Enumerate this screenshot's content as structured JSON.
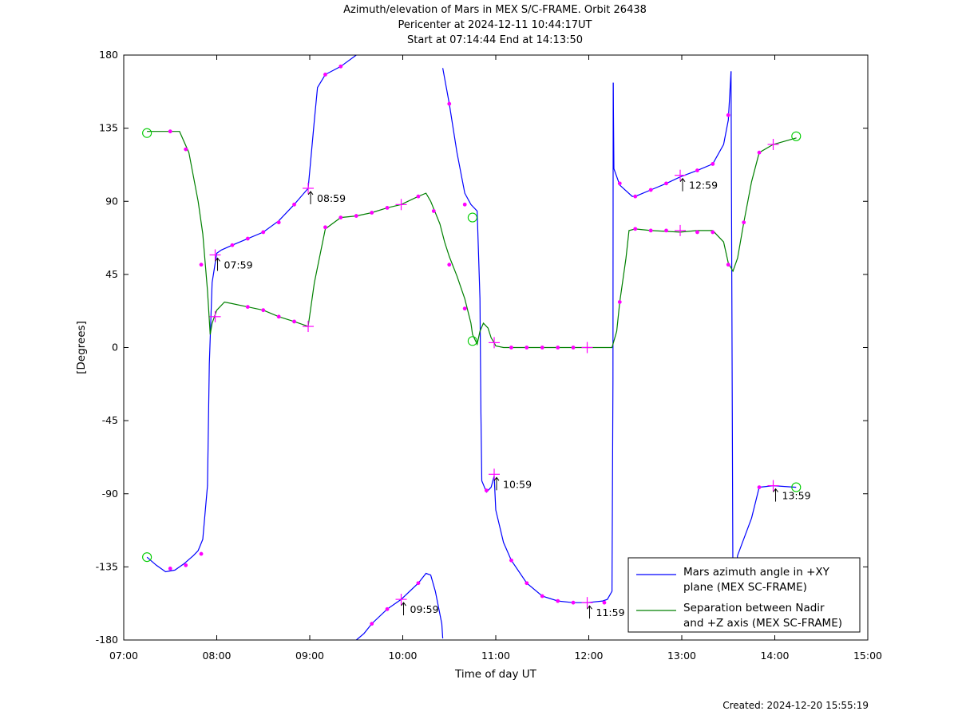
{
  "header": {
    "title": "Azimuth/elevation of Mars in MEX S/C-FRAME.  Orbit 26438",
    "pericenter": "Pericenter at 2024-12-11 10:44:17UT",
    "range": "Start at 07:14:44 End at 14:13:50"
  },
  "footer": {
    "created": "Created: 2024-12-20 15:55:19"
  },
  "chart_data": {
    "type": "line",
    "title": "Azimuth/elevation of Mars in MEX S/C-FRAME.  Orbit 26438",
    "xlabel": "Time of day UT",
    "ylabel": "[Degrees]",
    "xlim": [
      7.0,
      15.0
    ],
    "ylim": [
      -180,
      180
    ],
    "x_ticks": [
      "07:00",
      "08:00",
      "09:00",
      "10:00",
      "11:00",
      "12:00",
      "13:00",
      "14:00",
      "15:00"
    ],
    "y_ticks": [
      "180",
      "135",
      "90",
      "45",
      "0",
      "-45",
      "-90",
      "-135",
      "-180"
    ],
    "grid": false,
    "legend_position": "bottom-right",
    "series": [
      {
        "name": "Mars azimuth angle in +XY\nplane (MEX SC-FRAME)",
        "color": "#0000ff",
        "segments": [
          [
            [
              7.25,
              -129
            ],
            [
              7.35,
              -134
            ],
            [
              7.45,
              -138
            ],
            [
              7.55,
              -137
            ],
            [
              7.65,
              -133
            ],
            [
              7.75,
              -128
            ],
            [
              7.8,
              -125
            ],
            [
              7.85,
              -118
            ],
            [
              7.9,
              -85
            ],
            [
              7.92,
              -10
            ],
            [
              7.95,
              40
            ],
            [
              8.0,
              58
            ],
            [
              8.05,
              60
            ],
            [
              8.167,
              63
            ],
            [
              8.333,
              67
            ],
            [
              8.5,
              71
            ],
            [
              8.667,
              78
            ],
            [
              8.833,
              88
            ],
            [
              8.983,
              98
            ],
            [
              9.05,
              140
            ],
            [
              9.083,
              160
            ],
            [
              9.167,
              168
            ],
            [
              9.333,
              173
            ],
            [
              9.5,
              180
            ]
          ],
          [
            [
              9.5,
              -180
            ],
            [
              9.583,
              -176
            ],
            [
              9.667,
              -170
            ],
            [
              9.833,
              -161
            ],
            [
              9.983,
              -155
            ],
            [
              10.167,
              -145
            ],
            [
              10.25,
              -139
            ],
            [
              10.3,
              -140
            ],
            [
              10.35,
              -150
            ],
            [
              10.42,
              -170
            ],
            [
              10.43,
              -179
            ]
          ],
          [
            [
              10.43,
              172
            ],
            [
              10.5,
              150
            ],
            [
              10.583,
              120
            ],
            [
              10.667,
              95
            ],
            [
              10.733,
              88
            ],
            [
              10.8,
              84
            ],
            [
              10.83,
              30
            ],
            [
              10.84,
              -40
            ],
            [
              10.85,
              -82
            ],
            [
              10.9,
              -89
            ],
            [
              10.95,
              -86
            ],
            [
              10.983,
              -79
            ],
            [
              11.0,
              -100
            ],
            [
              11.083,
              -120
            ],
            [
              11.167,
              -131
            ],
            [
              11.333,
              -145
            ],
            [
              11.5,
              -153
            ],
            [
              11.667,
              -156
            ],
            [
              11.833,
              -157
            ],
            [
              11.983,
              -157
            ],
            [
              12.15,
              -156
            ],
            [
              12.2,
              -155
            ],
            [
              12.25,
              -150
            ],
            [
              12.26,
              -20
            ],
            [
              12.263,
              163
            ]
          ],
          [
            [
              12.263,
              163
            ],
            [
              12.27,
              110
            ],
            [
              12.333,
              100
            ],
            [
              12.467,
              93
            ],
            [
              12.5,
              93
            ],
            [
              12.667,
              97
            ],
            [
              12.833,
              101
            ],
            [
              12.983,
              105
            ],
            [
              13.167,
              109
            ],
            [
              13.333,
              113
            ],
            [
              13.45,
              125
            ],
            [
              13.5,
              140
            ],
            [
              13.53,
              170
            ]
          ],
          [
            [
              13.53,
              170
            ],
            [
              13.55,
              -150
            ],
            [
              13.6,
              -128
            ],
            [
              13.75,
              -105
            ],
            [
              13.833,
              -86
            ],
            [
              13.983,
              -85
            ],
            [
              14.23,
              -86
            ]
          ]
        ]
      },
      {
        "name": "Separation between Nadir\nand +Z axis (MEX SC-FRAME)",
        "color": "#008000",
        "segments": [
          [
            [
              7.25,
              133
            ],
            [
              7.6,
              133
            ],
            [
              7.7,
              120
            ],
            [
              7.8,
              90
            ],
            [
              7.85,
              70
            ],
            [
              7.9,
              35
            ],
            [
              7.93,
              8
            ],
            [
              7.95,
              15
            ],
            [
              8.0,
              23
            ],
            [
              8.083,
              28
            ],
            [
              8.167,
              27
            ],
            [
              8.333,
              25
            ],
            [
              8.5,
              23
            ],
            [
              8.667,
              19
            ],
            [
              8.833,
              16
            ],
            [
              8.983,
              13
            ],
            [
              9.05,
              40
            ],
            [
              9.167,
              73
            ],
            [
              9.333,
              80
            ],
            [
              9.5,
              81
            ],
            [
              9.667,
              83
            ],
            [
              9.833,
              86
            ],
            [
              9.983,
              88
            ],
            [
              10.167,
              93
            ],
            [
              10.25,
              95
            ],
            [
              10.3,
              90
            ],
            [
              10.35,
              83
            ],
            [
              10.4,
              76
            ],
            [
              10.45,
              65
            ],
            [
              10.5,
              56
            ],
            [
              10.583,
              44
            ],
            [
              10.667,
              30
            ],
            [
              10.733,
              15
            ],
            [
              10.75,
              8
            ],
            [
              10.8,
              2
            ],
            [
              10.83,
              10
            ],
            [
              10.867,
              15
            ],
            [
              10.917,
              12
            ],
            [
              10.95,
              6
            ],
            [
              10.983,
              3
            ],
            [
              11.0,
              1
            ],
            [
              11.083,
              0
            ],
            [
              11.5,
              0
            ],
            [
              12.25,
              0
            ],
            [
              12.3,
              10
            ],
            [
              12.333,
              28
            ],
            [
              12.4,
              55
            ],
            [
              12.433,
              72
            ],
            [
              12.5,
              73
            ],
            [
              12.667,
              72
            ],
            [
              12.983,
              71
            ],
            [
              13.167,
              72
            ],
            [
              13.333,
              72
            ],
            [
              13.45,
              65
            ],
            [
              13.5,
              52
            ],
            [
              13.55,
              47
            ],
            [
              13.6,
              55
            ],
            [
              13.667,
              77
            ],
            [
              13.75,
              102
            ],
            [
              13.833,
              120
            ],
            [
              13.983,
              125
            ],
            [
              14.233,
              129
            ]
          ]
        ]
      }
    ],
    "markers": {
      "dots": [
        [
          7.5,
          -136
        ],
        [
          7.667,
          -134
        ],
        [
          7.833,
          -127
        ],
        [
          8.167,
          63
        ],
        [
          8.333,
          67
        ],
        [
          8.5,
          71
        ],
        [
          8.667,
          77
        ],
        [
          8.833,
          88
        ],
        [
          9.167,
          168
        ],
        [
          9.333,
          173
        ],
        [
          9.667,
          -170
        ],
        [
          9.833,
          -161
        ],
        [
          10.167,
          -145
        ],
        [
          10.5,
          150
        ],
        [
          10.667,
          88
        ],
        [
          10.9,
          -88
        ],
        [
          11.167,
          -131
        ],
        [
          11.333,
          -145
        ],
        [
          11.5,
          -153
        ],
        [
          11.667,
          -156
        ],
        [
          11.833,
          -157
        ],
        [
          12.167,
          -157
        ],
        [
          12.333,
          101
        ],
        [
          12.5,
          93
        ],
        [
          12.667,
          97
        ],
        [
          12.833,
          101
        ],
        [
          13.167,
          109
        ],
        [
          13.333,
          113
        ],
        [
          13.5,
          143
        ],
        [
          13.833,
          -86
        ],
        [
          7.5,
          133
        ],
        [
          7.667,
          122
        ],
        [
          7.833,
          51
        ],
        [
          8.333,
          25
        ],
        [
          8.5,
          23
        ],
        [
          8.667,
          19
        ],
        [
          8.833,
          16
        ],
        [
          9.167,
          74
        ],
        [
          9.333,
          80
        ],
        [
          9.5,
          81
        ],
        [
          9.667,
          83
        ],
        [
          9.833,
          86
        ],
        [
          10.167,
          93
        ],
        [
          10.333,
          84
        ],
        [
          10.5,
          51
        ],
        [
          10.667,
          24
        ],
        [
          11.167,
          0
        ],
        [
          11.333,
          0
        ],
        [
          11.5,
          0
        ],
        [
          11.667,
          0
        ],
        [
          11.833,
          0
        ],
        [
          12.333,
          28
        ],
        [
          12.5,
          73
        ],
        [
          12.667,
          72
        ],
        [
          12.833,
          72
        ],
        [
          13.167,
          71
        ],
        [
          13.333,
          71
        ],
        [
          13.5,
          51
        ],
        [
          13.667,
          77
        ],
        [
          13.833,
          120
        ]
      ],
      "crosses": [
        [
          7.983,
          57
        ],
        [
          8.983,
          98
        ],
        [
          9.983,
          -155
        ],
        [
          10.983,
          -78
        ],
        [
          11.983,
          -157
        ],
        [
          12.983,
          106
        ],
        [
          13.983,
          -85
        ],
        [
          7.983,
          19
        ],
        [
          8.983,
          13
        ],
        [
          9.983,
          88
        ],
        [
          10.983,
          3
        ],
        [
          11.983,
          0
        ],
        [
          12.983,
          72
        ],
        [
          13.983,
          125
        ]
      ],
      "circles": [
        [
          7.25,
          132
        ],
        [
          7.25,
          -129
        ],
        [
          14.23,
          130
        ],
        [
          14.23,
          -86
        ],
        [
          10.75,
          80
        ],
        [
          10.75,
          4
        ]
      ]
    },
    "annotations": [
      {
        "label": "07:59",
        "x": 7.983,
        "y": 57
      },
      {
        "label": "08:59",
        "x": 8.983,
        "y": 98
      },
      {
        "label": "09:59",
        "x": 9.983,
        "y": -155
      },
      {
        "label": "10:59",
        "x": 10.983,
        "y": -78
      },
      {
        "label": "11:59",
        "x": 11.983,
        "y": -157
      },
      {
        "label": "12:59",
        "x": 12.983,
        "y": 106
      },
      {
        "label": "13:59",
        "x": 13.983,
        "y": -85
      }
    ]
  }
}
